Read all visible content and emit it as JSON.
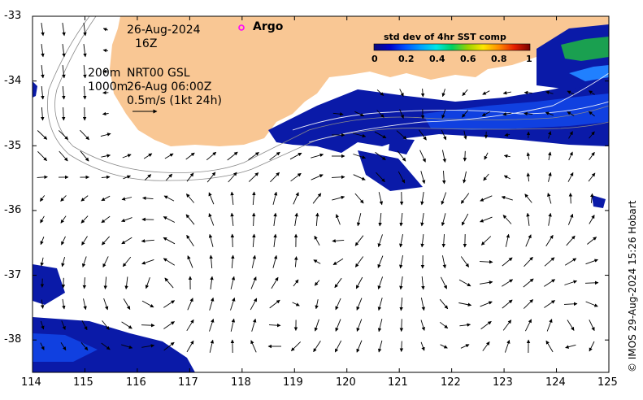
{
  "map": {
    "date_label": "26-Aug-2024",
    "time_label": "16Z",
    "depth_label_1": "200m",
    "depth_label_2": "1000m",
    "source_label": "NRT00 GSL",
    "analysis_time": "26-Aug 06:00Z",
    "scale_label": "0.5m/s (1kt 24h)",
    "legend_argo": "Argo",
    "credit": "© IMOS 29-Aug-2024 15:26 Hobart",
    "x_ticks": [
      "114",
      "115",
      "116",
      "117",
      "118",
      "119",
      "120",
      "121",
      "122",
      "123",
      "124",
      "125"
    ],
    "y_ticks": [
      "-33",
      "-34",
      "-35",
      "-36",
      "-37",
      "-38"
    ],
    "lon_range": [
      114,
      125
    ],
    "lat_range": [
      -38.5,
      -33
    ],
    "colors": {
      "land": "#f9c794",
      "argo": "#ff00ff",
      "arrows": "#000000"
    }
  },
  "colorbar": {
    "title": "std dev of 4hr SST comp",
    "ticks": [
      "0",
      "0.2",
      "0.4",
      "0.6",
      "0.8",
      "1"
    ],
    "range": [
      0,
      1
    ],
    "colormap": [
      "#0a0a78",
      "#0000c8",
      "#0050ff",
      "#00a0ff",
      "#00e6e6",
      "#00d060",
      "#9ad200",
      "#ffe600",
      "#ff8c00",
      "#e61e00",
      "#780000"
    ]
  }
}
